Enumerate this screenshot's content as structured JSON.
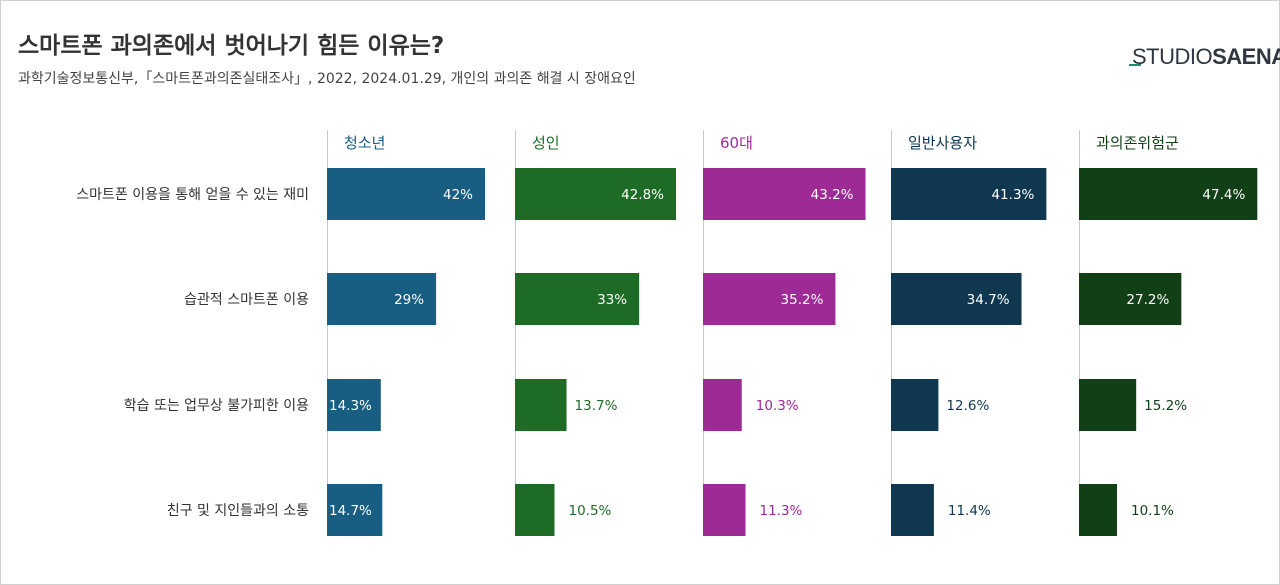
{
  "title": "스마트폰 과의존에서 벗어나기 힘든 이유는?",
  "subtitle": "과학기술정보통신부,「스마트폰과의존실태조사」, 2022, 2024.01.29, 개인의 과의존 해결 시 장애요인",
  "logo": {
    "part1": "STUDIO",
    "part2": "SAENA"
  },
  "chart_data": {
    "type": "bar",
    "orientation": "horizontal",
    "layout": "small-multiples",
    "categories": [
      "스마트폰 이용을 통해 얻을 수 있는 재미",
      "습관적 스마트폰 이용",
      "학습 또는 업무상 불가피한 이용",
      "친구 및 지인들과의 소통"
    ],
    "series": [
      {
        "name": "청소년",
        "color": "#175e82",
        "label_color": "#175e82",
        "values": [
          42,
          29,
          14.3,
          14.7
        ],
        "labels": [
          "42%",
          "29%",
          "14.3%",
          "14.7%"
        ]
      },
      {
        "name": "성인",
        "color": "#1d6b25",
        "label_color": "#1d6b25",
        "values": [
          42.8,
          33,
          13.7,
          10.5
        ],
        "labels": [
          "42.8%",
          "33%",
          "13.7%",
          "10.5%"
        ]
      },
      {
        "name": "60대",
        "color": "#9e2a95",
        "label_color": "#9e2a95",
        "values": [
          43.2,
          35.2,
          10.3,
          11.3
        ],
        "labels": [
          "43.2%",
          "35.2%",
          "10.3%",
          "11.3%"
        ]
      },
      {
        "name": "일반사용자",
        "color": "#0f3750",
        "label_color": "#0f3750",
        "values": [
          41.3,
          34.7,
          12.6,
          11.4
        ],
        "labels": [
          "41.3%",
          "34.7%",
          "12.6%",
          "11.4%"
        ]
      },
      {
        "name": "과의존위험군",
        "color": "#113f16",
        "label_color": "#113f16",
        "values": [
          47.4,
          27.2,
          15.2,
          10.1
        ],
        "labels": [
          "47.4%",
          "27.2%",
          "15.2%",
          "10.1%"
        ]
      }
    ],
    "value_max": 47.4,
    "inside_label_color": "#ffffff"
  }
}
